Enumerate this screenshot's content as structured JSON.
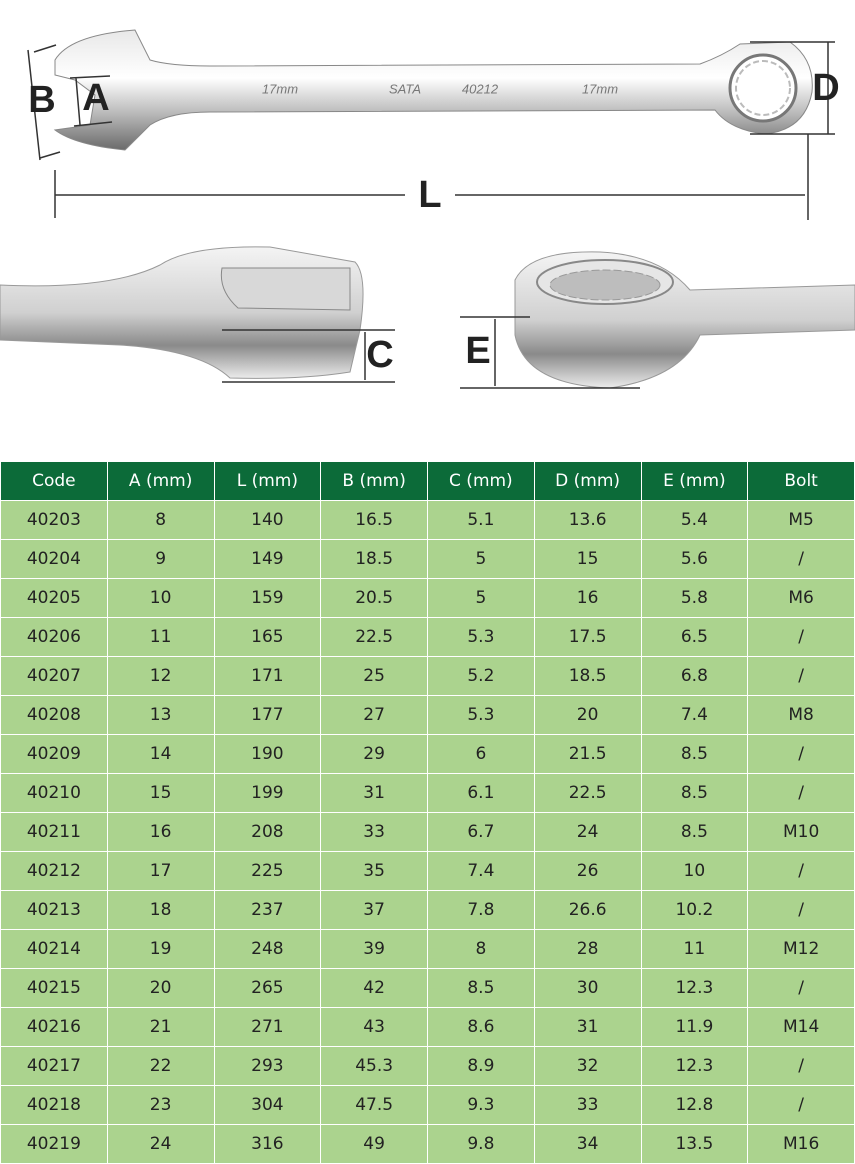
{
  "diagram": {
    "labels": {
      "a": "A",
      "b": "B",
      "d": "D",
      "l": "L",
      "c": "C",
      "e": "E"
    },
    "engravings": [
      "17mm",
      "SATA",
      "40212",
      "17mm"
    ]
  },
  "table": {
    "header": [
      "Code",
      "A (mm)",
      "L (mm)",
      "B (mm)",
      "C (mm)",
      "D (mm)",
      "E (mm)",
      "Bolt"
    ],
    "rows": [
      [
        "40203",
        "8",
        "140",
        "16.5",
        "5.1",
        "13.6",
        "5.4",
        "M5"
      ],
      [
        "40204",
        "9",
        "149",
        "18.5",
        "5",
        "15",
        "5.6",
        "/"
      ],
      [
        "40205",
        "10",
        "159",
        "20.5",
        "5",
        "16",
        "5.8",
        "M6"
      ],
      [
        "40206",
        "11",
        "165",
        "22.5",
        "5.3",
        "17.5",
        "6.5",
        "/"
      ],
      [
        "40207",
        "12",
        "171",
        "25",
        "5.2",
        "18.5",
        "6.8",
        "/"
      ],
      [
        "40208",
        "13",
        "177",
        "27",
        "5.3",
        "20",
        "7.4",
        "M8"
      ],
      [
        "40209",
        "14",
        "190",
        "29",
        "6",
        "21.5",
        "8.5",
        "/"
      ],
      [
        "40210",
        "15",
        "199",
        "31",
        "6.1",
        "22.5",
        "8.5",
        "/"
      ],
      [
        "40211",
        "16",
        "208",
        "33",
        "6.7",
        "24",
        "8.5",
        "M10"
      ],
      [
        "40212",
        "17",
        "225",
        "35",
        "7.4",
        "26",
        "10",
        "/"
      ],
      [
        "40213",
        "18",
        "237",
        "37",
        "7.8",
        "26.6",
        "10.2",
        "/"
      ],
      [
        "40214",
        "19",
        "248",
        "39",
        "8",
        "28",
        "11",
        "M12"
      ],
      [
        "40215",
        "20",
        "265",
        "42",
        "8.5",
        "30",
        "12.3",
        "/"
      ],
      [
        "40216",
        "21",
        "271",
        "43",
        "8.6",
        "31",
        "11.9",
        "M14"
      ],
      [
        "40217",
        "22",
        "293",
        "45.3",
        "8.9",
        "32",
        "12.3",
        "/"
      ],
      [
        "40218",
        "23",
        "304",
        "47.5",
        "9.3",
        "33",
        "12.8",
        "/"
      ],
      [
        "40219",
        "24",
        "316",
        "49",
        "9.8",
        "34",
        "13.5",
        "M16"
      ]
    ]
  }
}
